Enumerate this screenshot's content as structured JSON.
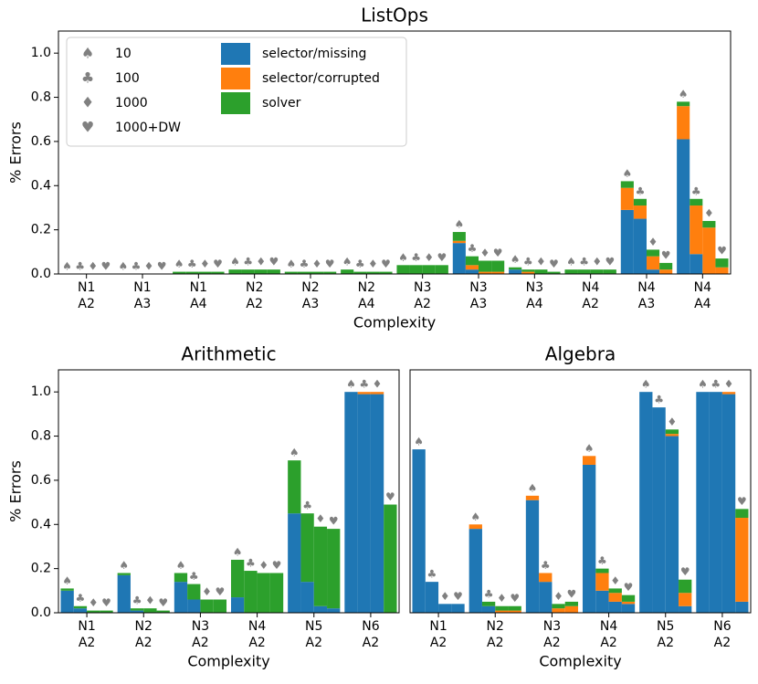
{
  "chart_data": [
    {
      "type": "bar",
      "title": "ListOps",
      "xlabel": "Complexity",
      "ylabel": "% Errors",
      "legend": "upper left",
      "groups": [
        {
          "name": "10",
          "marker": "♠"
        },
        {
          "name": "100",
          "marker": "♣"
        },
        {
          "name": "1000",
          "marker": "♦"
        },
        {
          "name": "1000+DW",
          "marker": "♥"
        }
      ],
      "categories": [
        [
          "N1",
          "A2"
        ],
        [
          "N1",
          "A3"
        ],
        [
          "N1",
          "A4"
        ],
        [
          "N2",
          "A2"
        ],
        [
          "N2",
          "A3"
        ],
        [
          "N2",
          "A4"
        ],
        [
          "N3",
          "A2"
        ],
        [
          "N3",
          "A3"
        ],
        [
          "N3",
          "A4"
        ],
        [
          "N4",
          "A2"
        ],
        [
          "N4",
          "A3"
        ],
        [
          "N4",
          "A4"
        ]
      ],
      "ylim": [
        0,
        1.1
      ],
      "yticks": [
        {
          "value": 0,
          "label": "0.0"
        },
        0.2,
        0.4,
        0.6,
        0.8,
        {
          "value": 1,
          "label": "1.0"
        }
      ],
      "series": [
        {
          "name": "selector/missing",
          "color": "#1f77b4",
          "values": [
            [
              0,
              0,
              0,
              0
            ],
            [
              0,
              0,
              0,
              0
            ],
            [
              0,
              0,
              0,
              0
            ],
            [
              0,
              0,
              0,
              0
            ],
            [
              0,
              0,
              0,
              0
            ],
            [
              0,
              0,
              0,
              0
            ],
            [
              0,
              0,
              0,
              0
            ],
            [
              0.14,
              0.02,
              0,
              0
            ],
            [
              0.02,
              0,
              0,
              0
            ],
            [
              0,
              0,
              0,
              0
            ],
            [
              0.29,
              0.25,
              0.02,
              0
            ],
            [
              0.61,
              0.09,
              0,
              0
            ]
          ]
        },
        {
          "name": "selector/corrupted",
          "color": "#ff7f0e",
          "values": [
            [
              0,
              0,
              0,
              0
            ],
            [
              0,
              0,
              0,
              0
            ],
            [
              0,
              0,
              0,
              0
            ],
            [
              0,
              0,
              0,
              0
            ],
            [
              0,
              0,
              0,
              0
            ],
            [
              0,
              0,
              0,
              0
            ],
            [
              0,
              0,
              0,
              0
            ],
            [
              0.01,
              0.02,
              0.01,
              0.01
            ],
            [
              0,
              0.01,
              0,
              0
            ],
            [
              0,
              0,
              0,
              0
            ],
            [
              0.1,
              0.06,
              0.06,
              0.02
            ],
            [
              0.15,
              0.22,
              0.21,
              0.03
            ]
          ]
        },
        {
          "name": "solver",
          "color": "#2ca02c",
          "values": [
            [
              0,
              0,
              0,
              0
            ],
            [
              0,
              0,
              0,
              0
            ],
            [
              0.01,
              0.01,
              0.01,
              0.01
            ],
            [
              0.02,
              0.02,
              0.02,
              0.02
            ],
            [
              0.01,
              0.01,
              0.01,
              0.01
            ],
            [
              0.02,
              0.01,
              0.01,
              0.01
            ],
            [
              0.04,
              0.04,
              0.04,
              0.04
            ],
            [
              0.04,
              0.04,
              0.05,
              0.05
            ],
            [
              0.01,
              0.01,
              0.02,
              0.01
            ],
            [
              0.02,
              0.02,
              0.02,
              0.02
            ],
            [
              0.03,
              0.03,
              0.03,
              0.03
            ],
            [
              0.02,
              0.03,
              0.03,
              0.04
            ]
          ]
        }
      ]
    },
    {
      "type": "bar",
      "title": "Arithmetic",
      "xlabel": "Complexity",
      "ylabel": "% Errors",
      "categories": [
        [
          "N1",
          "A2"
        ],
        [
          "N2",
          "A2"
        ],
        [
          "N3",
          "A2"
        ],
        [
          "N4",
          "A2"
        ],
        [
          "N5",
          "A2"
        ],
        [
          "N6",
          "A2"
        ]
      ],
      "ylim": [
        0,
        1.1
      ],
      "yticks": [
        {
          "value": 0,
          "label": "0.0"
        },
        0.2,
        0.4,
        0.6,
        0.8,
        {
          "value": 1,
          "label": "1.0"
        }
      ],
      "series": [
        {
          "color": "#1f77b4",
          "values": [
            [
              0.1,
              0.02,
              0,
              0
            ],
            [
              0.17,
              0.01,
              0,
              0
            ],
            [
              0.14,
              0.06,
              0,
              0
            ],
            [
              0.07,
              0,
              0,
              0
            ],
            [
              0.45,
              0.14,
              0.03,
              0.02
            ],
            [
              1,
              0.99,
              0.99,
              0
            ]
          ]
        },
        {
          "color": "#ff7f0e",
          "values": [
            [
              0,
              0,
              0,
              0
            ],
            [
              0,
              0,
              0,
              0
            ],
            [
              0,
              0,
              0,
              0
            ],
            [
              0,
              0,
              0,
              0
            ],
            [
              0,
              0,
              0,
              0
            ],
            [
              0,
              0.01,
              0.01,
              0
            ]
          ]
        },
        {
          "color": "#2ca02c",
          "values": [
            [
              0.01,
              0.01,
              0.01,
              0.01
            ],
            [
              0.01,
              0.01,
              0.02,
              0.01
            ],
            [
              0.04,
              0.07,
              0.06,
              0.06
            ],
            [
              0.17,
              0.19,
              0.18,
              0.18
            ],
            [
              0.24,
              0.31,
              0.36,
              0.36
            ],
            [
              0,
              0,
              0,
              0.49
            ]
          ]
        }
      ]
    },
    {
      "type": "bar",
      "title": "Algebra",
      "xlabel": "Complexity",
      "categories": [
        [
          "N1",
          "A2"
        ],
        [
          "N2",
          "A2"
        ],
        [
          "N3",
          "A2"
        ],
        [
          "N4",
          "A2"
        ],
        [
          "N5",
          "A2"
        ],
        [
          "N6",
          "A2"
        ]
      ],
      "ylim": [
        0,
        1.1
      ],
      "series": [
        {
          "color": "#1f77b4",
          "values": [
            [
              0.74,
              0.14,
              0.04,
              0.04
            ],
            [
              0.38,
              0.03,
              0,
              0
            ],
            [
              0.51,
              0.14,
              0,
              0
            ],
            [
              0.67,
              0.1,
              0.05,
              0.04
            ],
            [
              1,
              0.93,
              0.8,
              0.03
            ],
            [
              1,
              1,
              0.99,
              0.05
            ]
          ]
        },
        {
          "color": "#ff7f0e",
          "values": [
            [
              0,
              0,
              0,
              0
            ],
            [
              0.02,
              0,
              0.01,
              0.01
            ],
            [
              0.02,
              0.04,
              0.02,
              0.03
            ],
            [
              0.04,
              0.08,
              0.04,
              0.01
            ],
            [
              0,
              0,
              0.01,
              0.06
            ],
            [
              0,
              0,
              0.01,
              0.38
            ]
          ]
        },
        {
          "color": "#2ca02c",
          "values": [
            [
              0,
              0,
              0,
              0
            ],
            [
              0,
              0.02,
              0.02,
              0.02
            ],
            [
              0,
              0,
              0.02,
              0.02
            ],
            [
              0,
              0.02,
              0.02,
              0.03
            ],
            [
              0,
              0,
              0.02,
              0.06
            ],
            [
              0,
              0,
              0,
              0.04
            ]
          ]
        }
      ]
    }
  ]
}
